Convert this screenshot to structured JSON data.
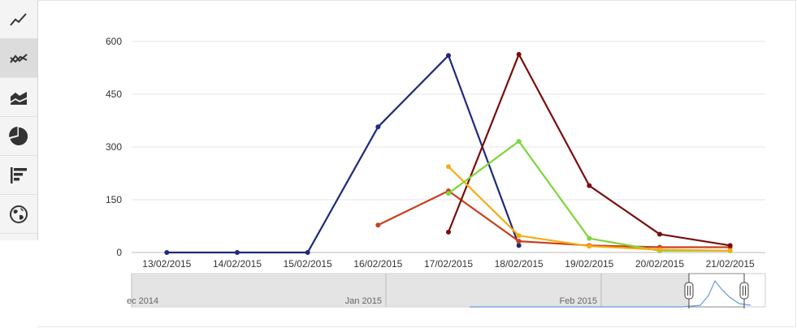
{
  "sidebar": {
    "items": [
      {
        "icon": "line-chart-icon",
        "active": false
      },
      {
        "icon": "multi-line-chart-icon",
        "active": true
      },
      {
        "icon": "area-chart-icon",
        "active": false
      },
      {
        "icon": "pie-chart-icon",
        "active": false
      },
      {
        "icon": "bar-chart-icon",
        "active": false
      },
      {
        "icon": "globe-icon",
        "active": false
      }
    ]
  },
  "navigator": {
    "labels": [
      "ec 2014",
      "Jan 2015",
      "Feb 2015"
    ]
  },
  "chart_data": {
    "type": "line",
    "title": "",
    "xlabel": "",
    "ylabel": "",
    "ylim": [
      0,
      600
    ],
    "yticks": [
      0,
      150,
      300,
      450,
      600
    ],
    "grid": true,
    "legend": "none",
    "categories": [
      "13/02/2015",
      "14/02/2015",
      "15/02/2015",
      "16/02/2015",
      "17/02/2015",
      "18/02/2015",
      "19/02/2015",
      "20/02/2015",
      "21/02/2015"
    ],
    "series": [
      {
        "color": "#1f2a7a",
        "values": [
          0,
          0,
          0,
          357,
          560,
          20,
          null,
          null,
          null
        ]
      },
      {
        "color": "#c8401e",
        "values": [
          null,
          null,
          null,
          78,
          175,
          32,
          20,
          15,
          15
        ]
      },
      {
        "color": "#7a0d0d",
        "values": [
          null,
          null,
          null,
          null,
          58,
          563,
          190,
          52,
          20
        ]
      },
      {
        "color": "#7ed63a",
        "values": [
          null,
          null,
          null,
          null,
          168,
          316,
          40,
          5,
          5
        ]
      },
      {
        "color": "#f5ac12",
        "values": [
          null,
          null,
          null,
          null,
          244,
          48,
          18,
          8,
          5
        ]
      }
    ]
  }
}
